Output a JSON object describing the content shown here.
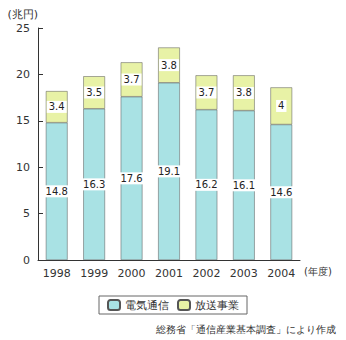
{
  "chart_data": {
    "type": "bar",
    "stacked": true,
    "y_label": "(兆円)",
    "x_label": "(年度)",
    "categories": [
      "1998",
      "1999",
      "2000",
      "2001",
      "2002",
      "2003",
      "2004"
    ],
    "series": [
      {
        "name": "電気通信",
        "color": "#a9e2e4",
        "values": [
          14.8,
          16.3,
          17.6,
          19.1,
          16.2,
          16.1,
          14.6
        ]
      },
      {
        "name": "放送事業",
        "color": "#e8f2a6",
        "values": [
          3.4,
          3.5,
          3.7,
          3.8,
          3.7,
          3.8,
          4.0
        ]
      }
    ],
    "ylim": [
      0,
      25
    ],
    "yticks": [
      0,
      5,
      10,
      15,
      20,
      25
    ],
    "grid": false,
    "legend": "bottom",
    "data_labels": true,
    "annotations": [
      "総務省「通信産業基本調査」により作成"
    ]
  }
}
